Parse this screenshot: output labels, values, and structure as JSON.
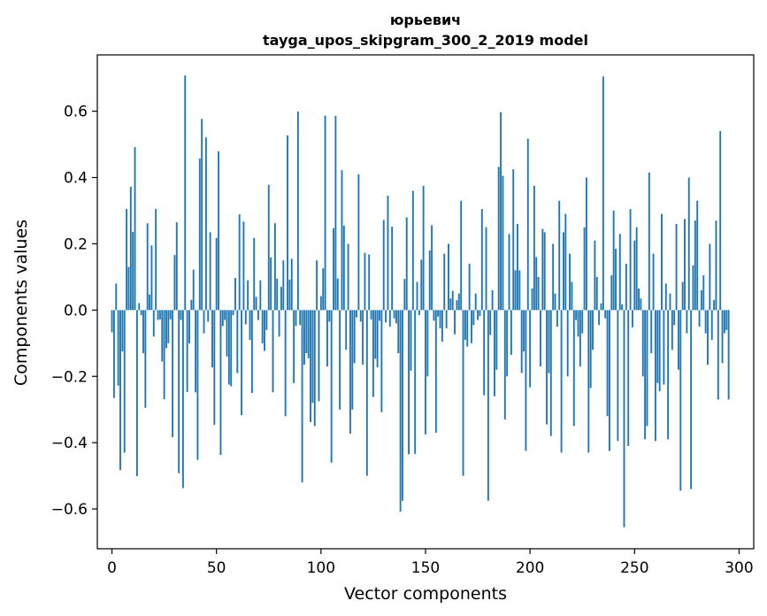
{
  "chart_data": {
    "type": "bar",
    "title": "юрьевич",
    "subtitle": "tayga_upos_skipgram_300_2_2019 model",
    "xlabel": "Vector components",
    "ylabel": "Components values",
    "xlim": [
      -7,
      307
    ],
    "ylim": [
      -0.72,
      0.77
    ],
    "xticks": [
      0,
      50,
      100,
      150,
      200,
      250,
      300
    ],
    "yticks": [
      -0.6,
      -0.4,
      -0.2,
      0.0,
      0.2,
      0.4,
      0.6
    ],
    "xtick_labels": [
      "0",
      "50",
      "100",
      "150",
      "200",
      "250",
      "300"
    ],
    "ytick_labels": [
      "−0.6",
      "−0.4",
      "−0.2",
      "0.0",
      "0.2",
      "0.4",
      "0.6"
    ],
    "bar_color": "#1f77b4",
    "grid": false,
    "legend": "none",
    "values": [
      -0.067,
      -0.265,
      0.08,
      -0.228,
      -0.483,
      -0.125,
      -0.43,
      0.305,
      0.13,
      0.372,
      0.236,
      0.492,
      -0.501,
      0.021,
      -0.015,
      -0.13,
      -0.295,
      0.262,
      0.047,
      0.195,
      -0.08,
      0.305,
      -0.03,
      -0.028,
      -0.155,
      -0.269,
      -0.115,
      -0.1,
      -0.028,
      -0.383,
      0.166,
      0.265,
      -0.492,
      -0.03,
      -0.537,
      0.708,
      -0.247,
      -0.1,
      0.031,
      0.122,
      -0.248,
      -0.452,
      0.457,
      0.577,
      -0.07,
      0.521,
      -0.035,
      0.235,
      -0.173,
      -0.346,
      0.218,
      0.479,
      -0.437,
      -0.048,
      -0.03,
      -0.14,
      -0.225,
      -0.23,
      -0.015,
      0.097,
      -0.19,
      0.289,
      -0.317,
      0.267,
      -0.043,
      0.09,
      -0.09,
      -0.25,
      0.218,
      0.04,
      -0.03,
      0.09,
      -0.1,
      -0.123,
      -0.06,
      0.378,
      0.159,
      -0.248,
      0.262,
      0.095,
      -0.08,
      0.07,
      0.15,
      -0.32,
      0.527,
      0.092,
      0.155,
      -0.22,
      -0.048,
      0.599,
      -0.045,
      -0.52,
      -0.165,
      -0.13,
      -0.145,
      -0.338,
      -0.28,
      -0.35,
      0.15,
      -0.275,
      0.042,
      0.126,
      0.587,
      -0.17,
      -0.035,
      -0.46,
      0.247,
      0.586,
      0.095,
      -0.3,
      0.422,
      0.255,
      -0.12,
      0.2,
      -0.373,
      -0.3,
      -0.16,
      -0.022,
      0.41,
      -0.035,
      -0.165,
      0.173,
      -0.5,
      0.168,
      -0.028,
      -0.262,
      -0.147,
      -0.173,
      -0.032,
      -0.308,
      0.272,
      -0.037,
      0.345,
      -0.05,
      0.252,
      -0.025,
      -0.04,
      -0.13,
      -0.608,
      -0.575,
      0.094,
      0.28,
      -0.435,
      -0.183,
      0.36,
      -0.434,
      0.085,
      -0.015,
      0.152,
      0.375,
      -0.375,
      -0.2,
      0.18,
      0.256,
      -0.032,
      -0.37,
      -0.02,
      -0.055,
      -0.095,
      0.17,
      -0.055,
      0.2,
      0.035,
      0.058,
      -0.073,
      0.03,
      0.05,
      0.33,
      -0.5,
      -0.09,
      -0.11,
      0.14,
      -0.1,
      -0.045,
      0.05,
      -0.03,
      -0.018,
      0.305,
      -0.257,
      0.25,
      -0.575,
      -0.075,
      0.06,
      -0.26,
      -0.18,
      0.432,
      0.597,
      0.405,
      -0.33,
      -0.2,
      0.23,
      -0.135,
      0.425,
      0.12,
      0.26,
      0.12,
      -0.19,
      -0.125,
      -0.425,
      0.517,
      -0.233,
      0.065,
      0.375,
      0.16,
      0.1,
      -0.17,
      0.245,
      0.235,
      -0.345,
      -0.19,
      -0.38,
      0.2,
      0.05,
      -0.05,
      0.33,
      -0.43,
      0.235,
      0.29,
      -0.2,
      0.17,
      0.085,
      -0.35,
      -0.03,
      -0.08,
      -0.17,
      -0.07,
      0.25,
      0.4,
      -0.43,
      -0.235,
      -0.12,
      0.21,
      0.1,
      -0.045,
      0.02,
      0.705,
      -0.025,
      -0.32,
      -0.425,
      0.105,
      0.3,
      0.185,
      -0.395,
      0.23,
      0.017,
      -0.655,
      0.14,
      -0.41,
      0.305,
      -0.052,
      0.21,
      0.25,
      0.065,
      0.035,
      -0.2,
      -0.39,
      -0.35,
      0.415,
      -0.13,
      0.17,
      -0.395,
      -0.22,
      -0.245,
      0.29,
      -0.225,
      0.08,
      -0.39,
      0.05,
      -0.12,
      -0.045,
      0.26,
      -0.18,
      -0.545,
      0.085,
      0.275,
      -0.07,
      0.4,
      -0.54,
      0.135,
      0.27,
      0.33,
      -0.05,
      0.06,
      0.105,
      -0.07,
      -0.165,
      0.2,
      -0.09,
      0.03,
      0.27,
      -0.27,
      0.54,
      -0.16,
      -0.07,
      -0.06,
      -0.27
    ]
  }
}
